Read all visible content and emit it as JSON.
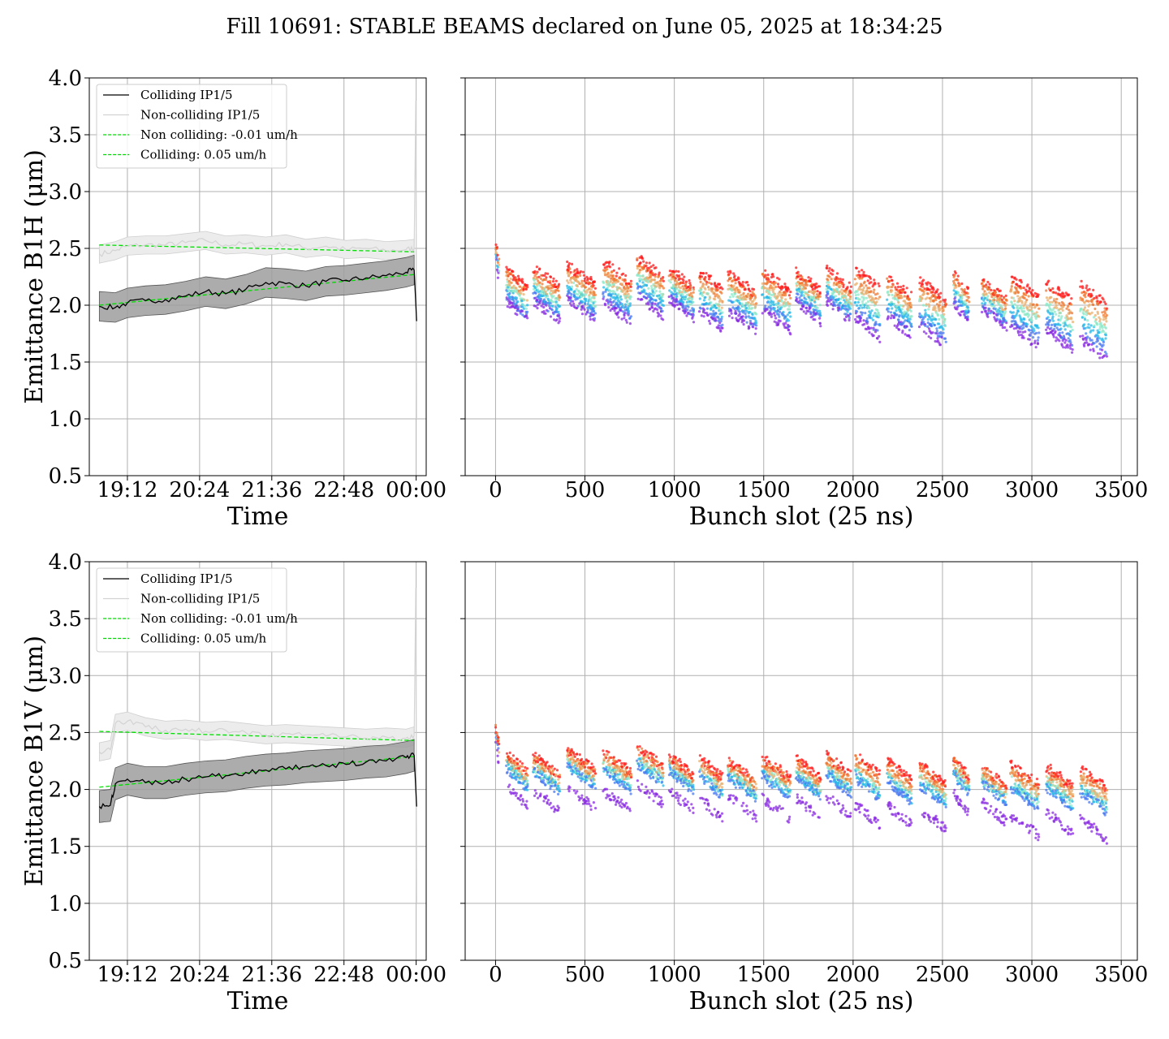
{
  "title": "Fill 10691: STABLE BEAMS declared on June 05, 2025 at 18:34:25",
  "colors": {
    "colliding": "#000000",
    "non_colliding": "#d3d3d3",
    "fit": "#00dd00",
    "band_colliding": "#9e9e9e",
    "band_non_colliding": "#ececec",
    "grid": "#b0b0b0"
  },
  "chart_data": [
    {
      "id": "b1h-time",
      "type": "line",
      "xlabel": "Time",
      "ylabel": "Emittance B1H (μm)",
      "ylim": [
        0.5,
        4.0
      ],
      "yticks": [
        "0.5",
        "1.0",
        "1.5",
        "2.0",
        "2.5",
        "3.0",
        "3.5",
        "4.0"
      ],
      "xlim": [
        "18:34",
        "00:10"
      ],
      "xticks": [
        "19:12",
        "20:24",
        "21:36",
        "22:48",
        "00:00"
      ],
      "grid": true,
      "legend": {
        "placement": "upper-left",
        "entries": [
          "Colliding IP1/5",
          "Non-colliding IP1/5",
          "Non colliding: -0.01 um/h",
          "Colliding: 0.05 um/h"
        ]
      },
      "x": [
        "18:44",
        "19:00",
        "19:12",
        "19:30",
        "19:50",
        "20:10",
        "20:30",
        "20:50",
        "21:10",
        "21:30",
        "21:50",
        "22:10",
        "22:30",
        "22:50",
        "23:10",
        "23:30",
        "23:50",
        "23:58"
      ],
      "series": [
        {
          "name": "Colliding IP1/5",
          "values": [
            1.99,
            1.98,
            2.02,
            2.04,
            2.05,
            2.08,
            2.12,
            2.1,
            2.14,
            2.2,
            2.19,
            2.17,
            2.21,
            2.22,
            2.24,
            2.26,
            2.29,
            2.31
          ],
          "band": 0.13
        },
        {
          "name": "Non-colliding IP1/5",
          "values": [
            2.45,
            2.48,
            2.52,
            2.53,
            2.53,
            2.55,
            2.57,
            2.53,
            2.54,
            2.52,
            2.54,
            2.5,
            2.52,
            2.49,
            2.5,
            2.48,
            2.49,
            2.5
          ],
          "band": 0.08
        }
      ],
      "fits": [
        {
          "name": "Non colliding: -0.01 um/h",
          "start": 2.53,
          "end": 2.47
        },
        {
          "name": "Colliding: 0.05 um/h",
          "start": 2.0,
          "end": 2.27
        }
      ]
    },
    {
      "id": "b1h-bunch",
      "type": "scatter",
      "xlabel": "Bunch slot (25 ns)",
      "ylim": [
        0.5,
        4.0
      ],
      "xlim": [
        -170,
        3590
      ],
      "xticks": [
        0,
        500,
        1000,
        1500,
        2000,
        2500,
        3000,
        3500
      ],
      "grid": true,
      "trains": [
        {
          "start": 0,
          "end": 20,
          "top": 2.55,
          "low": 2.35
        },
        {
          "start": 60,
          "end": 180,
          "top": 2.32,
          "low": 1.95
        },
        {
          "start": 210,
          "end": 360,
          "top": 2.33,
          "low": 1.95
        },
        {
          "start": 400,
          "end": 560,
          "top": 2.35,
          "low": 1.95
        },
        {
          "start": 600,
          "end": 760,
          "top": 2.38,
          "low": 1.92
        },
        {
          "start": 790,
          "end": 940,
          "top": 2.42,
          "low": 1.98
        },
        {
          "start": 970,
          "end": 1110,
          "top": 2.32,
          "low": 1.98
        },
        {
          "start": 1140,
          "end": 1270,
          "top": 2.3,
          "low": 1.85
        },
        {
          "start": 1300,
          "end": 1460,
          "top": 2.28,
          "low": 1.85
        },
        {
          "start": 1490,
          "end": 1650,
          "top": 2.3,
          "low": 1.85
        },
        {
          "start": 1680,
          "end": 1820,
          "top": 2.3,
          "low": 1.95
        },
        {
          "start": 1850,
          "end": 1990,
          "top": 2.32,
          "low": 1.95
        },
        {
          "start": 2010,
          "end": 2150,
          "top": 2.32,
          "low": 1.75
        },
        {
          "start": 2190,
          "end": 2330,
          "top": 2.25,
          "low": 1.8
        },
        {
          "start": 2370,
          "end": 2520,
          "top": 2.22,
          "low": 1.7
        },
        {
          "start": 2560,
          "end": 2650,
          "top": 2.28,
          "low": 1.95
        },
        {
          "start": 2720,
          "end": 2860,
          "top": 2.22,
          "low": 1.9
        },
        {
          "start": 2880,
          "end": 3040,
          "top": 2.25,
          "low": 1.68
        },
        {
          "start": 3080,
          "end": 3230,
          "top": 2.2,
          "low": 1.65
        },
        {
          "start": 3270,
          "end": 3420,
          "top": 2.18,
          "low": 1.55
        }
      ]
    },
    {
      "id": "b1v-time",
      "type": "line",
      "xlabel": "Time",
      "ylabel": "Emittance B1V (μm)",
      "ylim": [
        0.5,
        4.0
      ],
      "yticks": [
        "0.5",
        "1.0",
        "1.5",
        "2.0",
        "2.5",
        "3.0",
        "3.5",
        "4.0"
      ],
      "xlim": [
        "18:34",
        "00:10"
      ],
      "xticks": [
        "19:12",
        "20:24",
        "21:36",
        "22:48",
        "00:00"
      ],
      "grid": true,
      "legend": {
        "placement": "upper-left",
        "entries": [
          "Colliding IP1/5",
          "Non-colliding IP1/5",
          "Non colliding: -0.01 um/h",
          "Colliding: 0.05 um/h"
        ]
      },
      "x": [
        "18:44",
        "18:55",
        "19:00",
        "19:12",
        "19:30",
        "19:50",
        "20:10",
        "20:30",
        "20:50",
        "21:10",
        "21:30",
        "21:50",
        "22:10",
        "22:30",
        "22:50",
        "23:10",
        "23:30",
        "23:50",
        "23:58"
      ],
      "series": [
        {
          "name": "Colliding IP1/5",
          "values": [
            1.85,
            1.86,
            2.05,
            2.09,
            2.06,
            2.06,
            2.09,
            2.11,
            2.12,
            2.15,
            2.17,
            2.18,
            2.2,
            2.21,
            2.22,
            2.24,
            2.25,
            2.28,
            2.3
          ],
          "band": 0.14
        },
        {
          "name": "Non-colliding IP1/5",
          "values": [
            2.33,
            2.35,
            2.58,
            2.6,
            2.55,
            2.52,
            2.53,
            2.51,
            2.52,
            2.5,
            2.48,
            2.49,
            2.48,
            2.47,
            2.46,
            2.45,
            2.46,
            2.45,
            2.47
          ],
          "band": 0.08
        }
      ],
      "fits": [
        {
          "name": "Non colliding: -0.01 um/h",
          "start": 2.51,
          "end": 2.43
        },
        {
          "name": "Colliding: 0.05 um/h",
          "start": 2.02,
          "end": 2.29
        }
      ]
    },
    {
      "id": "b1v-bunch",
      "type": "scatter",
      "xlabel": "Bunch slot (25 ns)",
      "ylim": [
        0.5,
        4.0
      ],
      "xlim": [
        -170,
        3590
      ],
      "xticks": [
        0,
        500,
        1000,
        1500,
        2000,
        2500,
        3000,
        3500
      ],
      "grid": true,
      "trains": [
        {
          "start": 0,
          "end": 20,
          "top": 2.55,
          "low": 2.3
        },
        {
          "start": 60,
          "end": 180,
          "top": 2.32,
          "low": 1.85
        },
        {
          "start": 210,
          "end": 360,
          "top": 2.3,
          "low": 1.8
        },
        {
          "start": 400,
          "end": 560,
          "top": 2.35,
          "low": 1.8
        },
        {
          "start": 600,
          "end": 760,
          "top": 2.33,
          "low": 1.78
        },
        {
          "start": 790,
          "end": 940,
          "top": 2.38,
          "low": 1.85
        },
        {
          "start": 970,
          "end": 1110,
          "top": 2.3,
          "low": 1.8
        },
        {
          "start": 1140,
          "end": 1270,
          "top": 2.28,
          "low": 1.7
        },
        {
          "start": 1300,
          "end": 1460,
          "top": 2.25,
          "low": 1.75
        },
        {
          "start": 1490,
          "end": 1650,
          "top": 2.28,
          "low": 1.7
        },
        {
          "start": 1680,
          "end": 1820,
          "top": 2.27,
          "low": 1.72
        },
        {
          "start": 1850,
          "end": 1990,
          "top": 2.3,
          "low": 1.72
        },
        {
          "start": 2010,
          "end": 2150,
          "top": 2.3,
          "low": 1.6
        },
        {
          "start": 2190,
          "end": 2330,
          "top": 2.25,
          "low": 1.62
        },
        {
          "start": 2370,
          "end": 2520,
          "top": 2.22,
          "low": 1.6
        },
        {
          "start": 2560,
          "end": 2650,
          "top": 2.28,
          "low": 1.78
        },
        {
          "start": 2720,
          "end": 2860,
          "top": 2.2,
          "low": 1.7
        },
        {
          "start": 2880,
          "end": 3040,
          "top": 2.22,
          "low": 1.5
        },
        {
          "start": 3080,
          "end": 3230,
          "top": 2.2,
          "low": 1.55
        },
        {
          "start": 3270,
          "end": 3420,
          "top": 2.18,
          "low": 1.48
        }
      ]
    }
  ]
}
